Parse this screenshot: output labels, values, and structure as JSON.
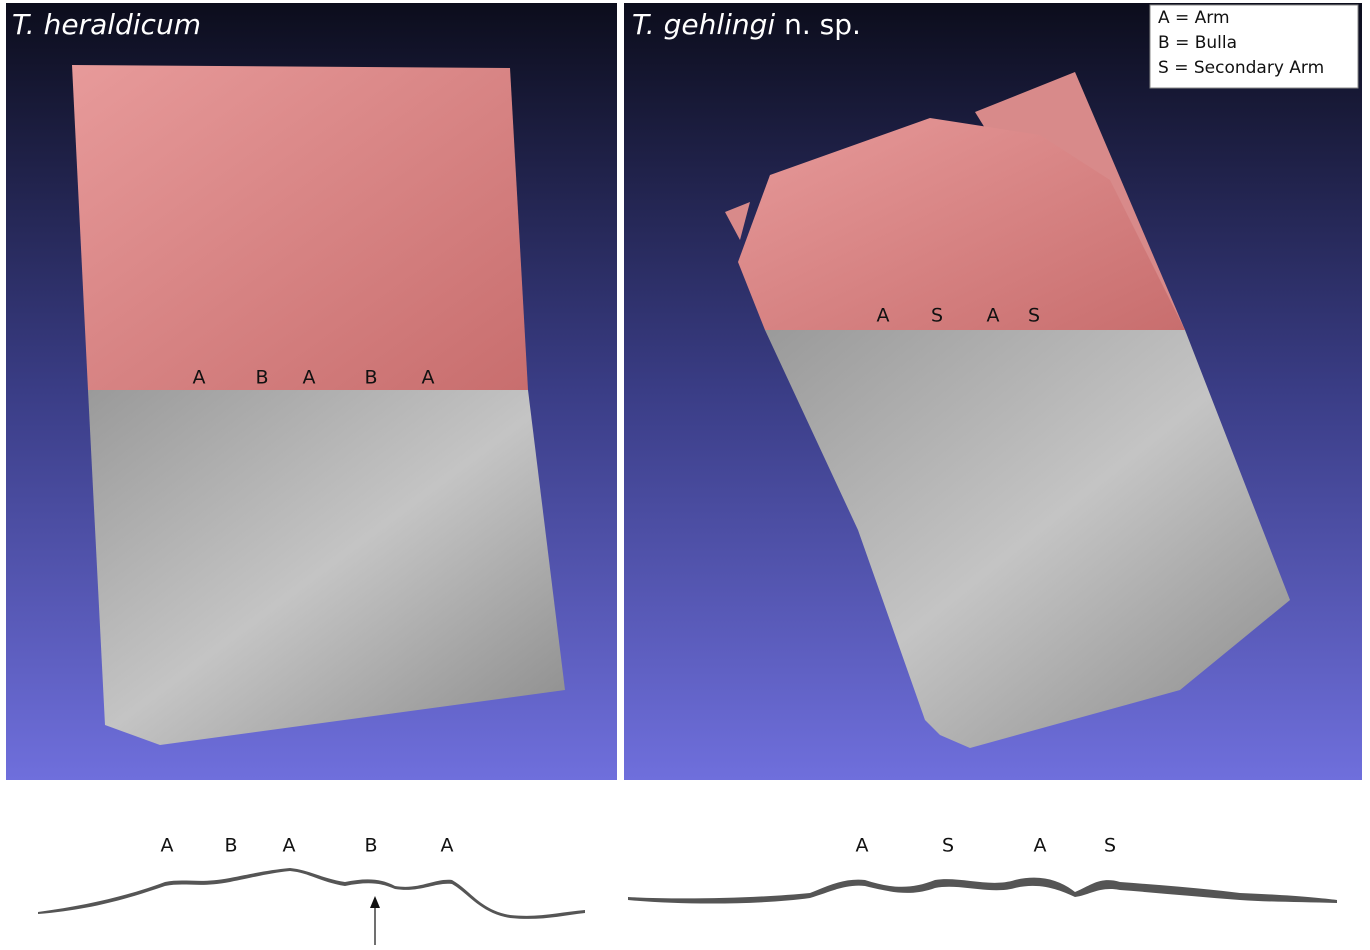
{
  "panels": [
    {
      "title": {
        "italic": "T. heraldicum"
      },
      "labels": [
        "A",
        "B",
        "A",
        "B",
        "A"
      ],
      "profile_labels": [
        "A",
        "B",
        "A",
        "B",
        "A"
      ]
    },
    {
      "title": {
        "italic": "T. gehlingi",
        "plain": "n. sp."
      },
      "labels": [
        "A",
        "S",
        "A",
        "S"
      ],
      "profile_labels": [
        "A",
        "S",
        "A",
        "S"
      ]
    }
  ],
  "legend": [
    "A = Arm",
    "B = Bulla",
    "S = Secondary Arm"
  ]
}
